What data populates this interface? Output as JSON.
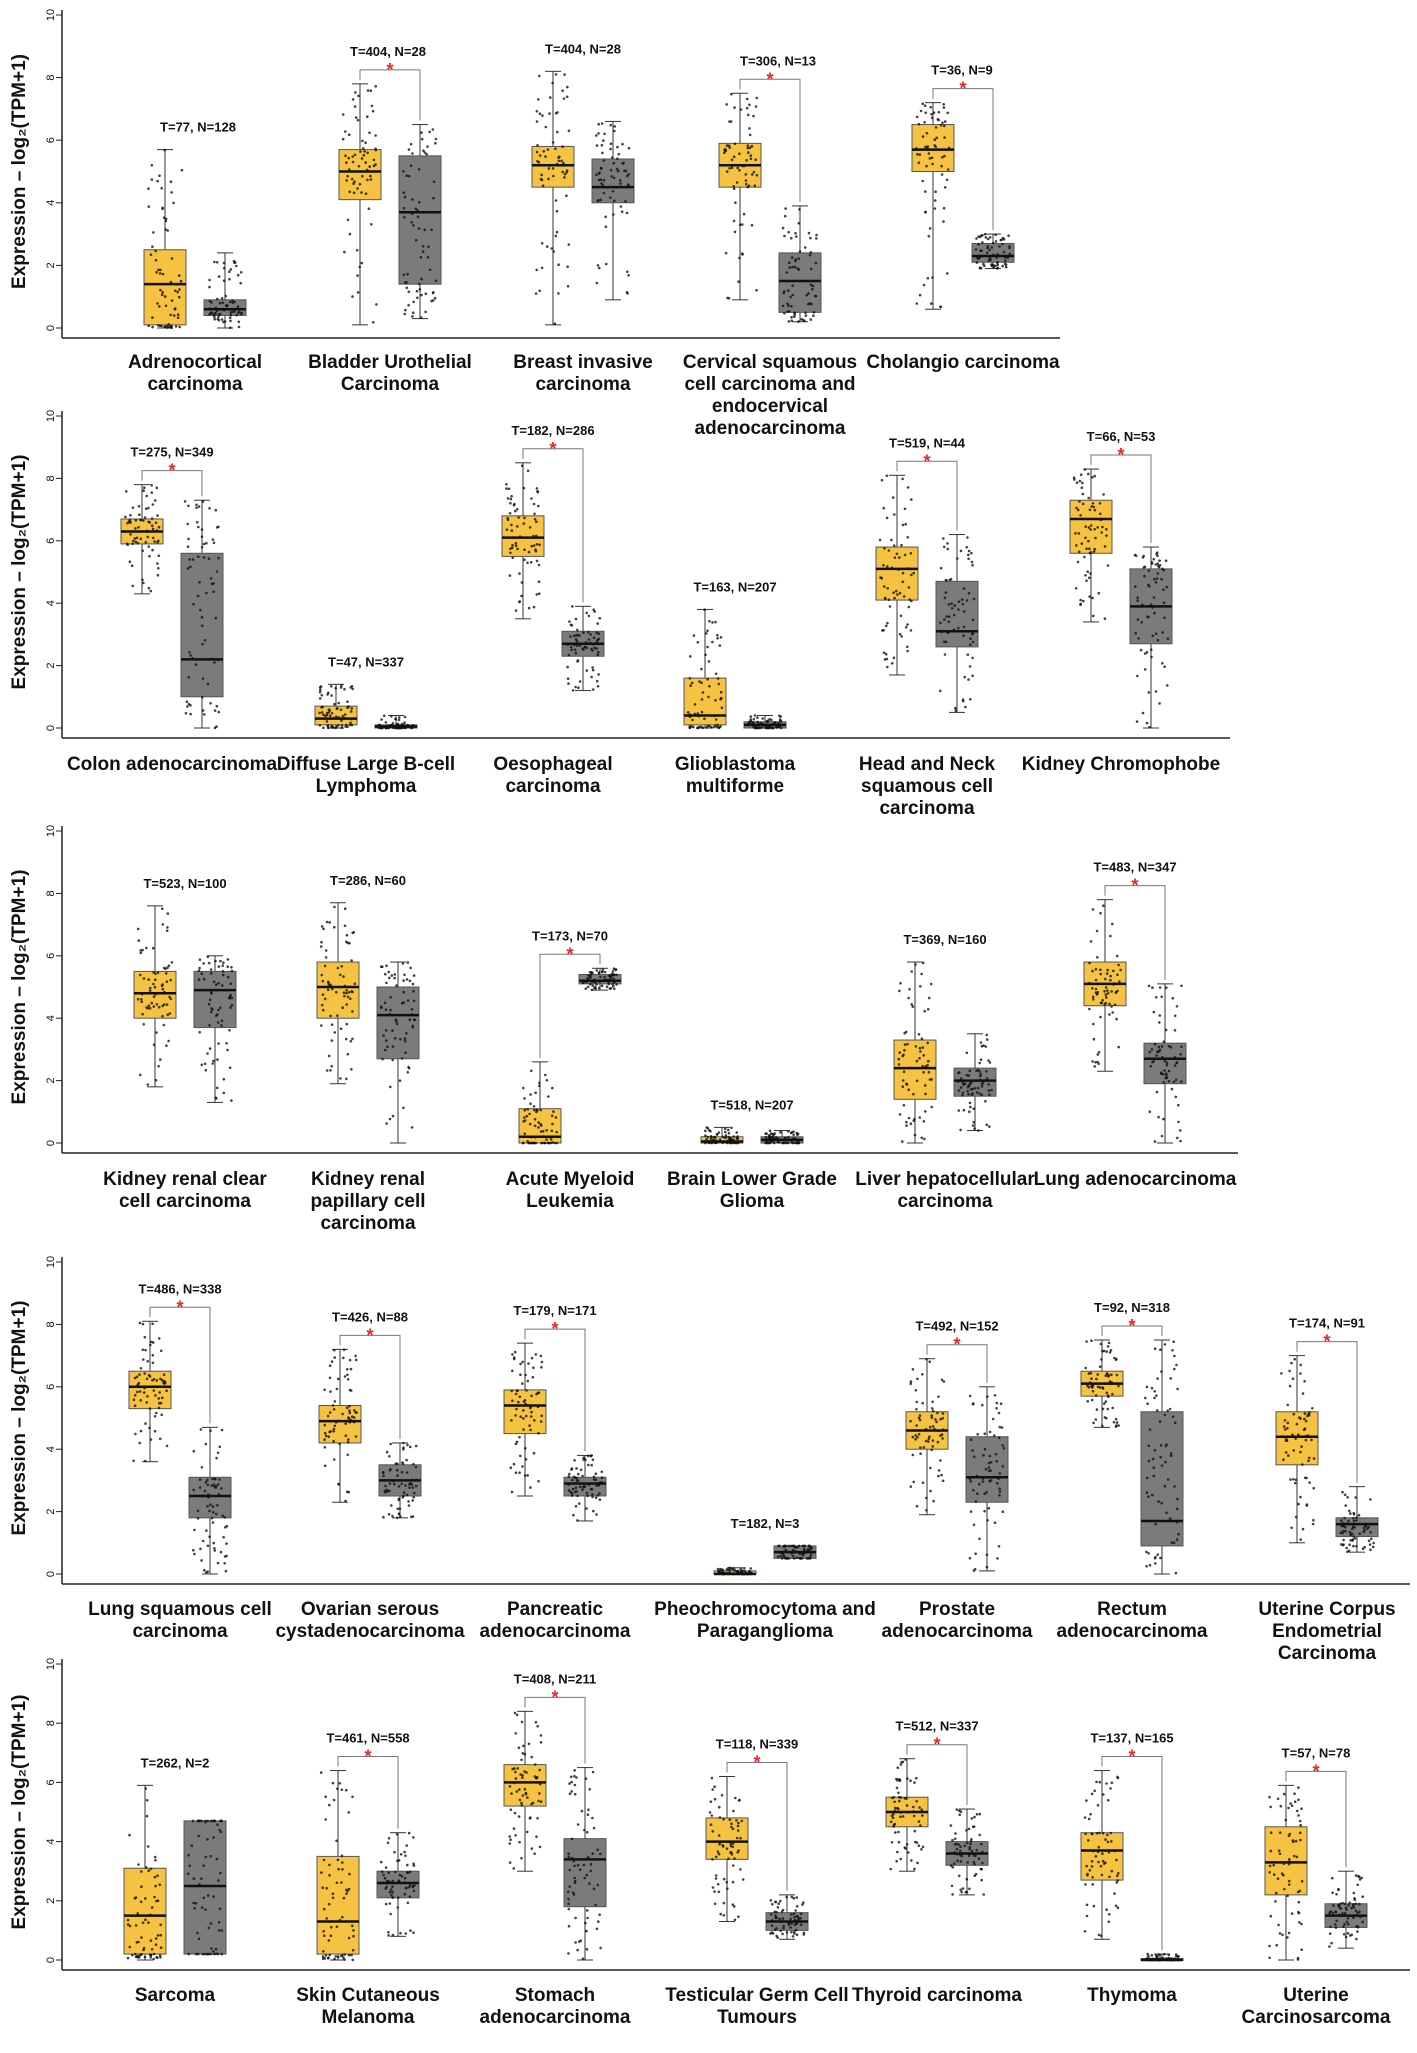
{
  "colors": {
    "tumor": "#F5C242",
    "normal": "#7B7B7B",
    "significance": "#E8262A",
    "points": "#111111"
  },
  "chart_data": [
    {
      "type": "box",
      "ylabel": "Expression – log₂(TPM+1)",
      "ylim": [
        0,
        10
      ],
      "yticks": [
        "0",
        "2",
        "4",
        "6",
        "8",
        "10"
      ],
      "groups": [
        {
          "name": "Adrenocortical carcinoma",
          "annotation": "T=77, N=128",
          "significant": false,
          "tumor": {
            "min": 0.0,
            "q1": 0.1,
            "median": 1.4,
            "q3": 2.5,
            "max": 5.7
          },
          "normal": {
            "min": 0.0,
            "q1": 0.4,
            "median": 0.6,
            "q3": 0.9,
            "max": 2.4
          }
        },
        {
          "name": "Bladder Urothelial Carcinoma",
          "annotation": "T=404, N=28",
          "significant": true,
          "tumor": {
            "min": 0.1,
            "q1": 4.1,
            "median": 5.0,
            "q3": 5.7,
            "max": 7.8
          },
          "normal": {
            "min": 0.3,
            "q1": 1.4,
            "median": 3.7,
            "q3": 5.5,
            "max": 6.5
          }
        },
        {
          "name": "Breast invasive carcinoma",
          "annotation": "T=404, N=28",
          "significant": false,
          "tumor": {
            "min": 0.1,
            "q1": 4.5,
            "median": 5.2,
            "q3": 5.8,
            "max": 8.2
          },
          "normal": {
            "min": 0.9,
            "q1": 4.0,
            "median": 4.5,
            "q3": 5.4,
            "max": 6.6
          }
        },
        {
          "name": "Cervical squamous cell carcinoma and endocervical adenocarcinoma",
          "annotation": "T=306, N=13",
          "significant": true,
          "tumor": {
            "min": 0.9,
            "q1": 4.5,
            "median": 5.2,
            "q3": 5.9,
            "max": 7.5
          },
          "normal": {
            "min": 0.2,
            "q1": 0.5,
            "median": 1.5,
            "q3": 2.4,
            "max": 3.9
          }
        },
        {
          "name": "Cholangio carcinoma",
          "annotation": "T=36, N=9",
          "significant": true,
          "tumor": {
            "min": 0.6,
            "q1": 5.0,
            "median": 5.7,
            "q3": 6.5,
            "max": 7.2
          },
          "normal": {
            "min": 1.9,
            "q1": 2.1,
            "median": 2.3,
            "q3": 2.7,
            "max": 3.0
          }
        }
      ]
    },
    {
      "type": "box",
      "ylabel": "Expression – log₂(TPM+1)",
      "ylim": [
        0,
        10
      ],
      "yticks": [
        "0",
        "2",
        "4",
        "6",
        "8",
        "10"
      ],
      "groups": [
        {
          "name": "Colon adenocarcinoma",
          "annotation": "T=275, N=349",
          "significant": true,
          "tumor": {
            "min": 4.3,
            "q1": 5.9,
            "median": 6.3,
            "q3": 6.7,
            "max": 7.8
          },
          "normal": {
            "min": 0.0,
            "q1": 1.0,
            "median": 2.2,
            "q3": 5.6,
            "max": 7.3
          }
        },
        {
          "name": "Diffuse Large B-cell Lymphoma",
          "annotation": "T=47, N=337",
          "significant": false,
          "tumor": {
            "min": 0.0,
            "q1": 0.1,
            "median": 0.3,
            "q3": 0.7,
            "max": 1.4
          },
          "normal": {
            "min": 0.0,
            "q1": 0.0,
            "median": 0.05,
            "q3": 0.1,
            "max": 0.4
          }
        },
        {
          "name": "Oesophageal carcinoma",
          "annotation": "T=182, N=286",
          "significant": true,
          "tumor": {
            "min": 3.5,
            "q1": 5.5,
            "median": 6.1,
            "q3": 6.8,
            "max": 8.5
          },
          "normal": {
            "min": 1.2,
            "q1": 2.3,
            "median": 2.7,
            "q3": 3.1,
            "max": 3.9
          }
        },
        {
          "name": "Glioblastoma multiforme",
          "annotation": "T=163, N=207",
          "significant": false,
          "tumor": {
            "min": 0.0,
            "q1": 0.1,
            "median": 0.4,
            "q3": 1.6,
            "max": 3.8
          },
          "normal": {
            "min": 0.0,
            "q1": 0.0,
            "median": 0.1,
            "q3": 0.2,
            "max": 0.4
          }
        },
        {
          "name": "Head and Neck squamous cell carcinoma",
          "annotation": "T=519, N=44",
          "significant": true,
          "tumor": {
            "min": 1.7,
            "q1": 4.1,
            "median": 5.1,
            "q3": 5.8,
            "max": 8.1
          },
          "normal": {
            "min": 0.5,
            "q1": 2.6,
            "median": 3.1,
            "q3": 4.7,
            "max": 6.2
          }
        },
        {
          "name": "Kidney Chromophobe",
          "annotation": "T=66, N=53",
          "significant": true,
          "tumor": {
            "min": 3.4,
            "q1": 5.6,
            "median": 6.7,
            "q3": 7.3,
            "max": 8.3
          },
          "normal": {
            "min": 0.0,
            "q1": 2.7,
            "median": 3.9,
            "q3": 5.1,
            "max": 5.8
          }
        }
      ]
    },
    {
      "type": "box",
      "ylabel": "Expression – log₂(TPM+1)",
      "ylim": [
        0,
        10
      ],
      "yticks": [
        "0",
        "2",
        "4",
        "6",
        "8",
        "10"
      ],
      "groups": [
        {
          "name": "Kidney renal clear cell carcinoma",
          "annotation": "T=523, N=100",
          "significant": false,
          "tumor": {
            "min": 1.8,
            "q1": 4.0,
            "median": 4.8,
            "q3": 5.5,
            "max": 7.6
          },
          "normal": {
            "min": 1.3,
            "q1": 3.7,
            "median": 4.9,
            "q3": 5.5,
            "max": 6.0
          }
        },
        {
          "name": "Kidney renal papillary cell carcinoma",
          "annotation": "T=286, N=60",
          "significant": false,
          "tumor": {
            "min": 1.9,
            "q1": 4.0,
            "median": 5.0,
            "q3": 5.8,
            "max": 7.7
          },
          "normal": {
            "min": 0.0,
            "q1": 2.7,
            "median": 4.1,
            "q3": 5.0,
            "max": 5.8
          }
        },
        {
          "name": "Acute Myeloid Leukemia",
          "annotation": "T=173, N=70",
          "significant": true,
          "tumor": {
            "min": 0.0,
            "q1": 0.0,
            "median": 0.2,
            "q3": 1.1,
            "max": 2.6
          },
          "normal": {
            "min": 4.9,
            "q1": 5.1,
            "median": 5.2,
            "q3": 5.4,
            "max": 5.6
          }
        },
        {
          "name": "Brain Lower Grade Glioma",
          "annotation": "T=518, N=207",
          "significant": false,
          "tumor": {
            "min": 0.0,
            "q1": 0.0,
            "median": 0.05,
            "q3": 0.2,
            "max": 0.5
          },
          "normal": {
            "min": 0.0,
            "q1": 0.0,
            "median": 0.1,
            "q3": 0.2,
            "max": 0.4
          }
        },
        {
          "name": "Liver hepatocellular carcinoma",
          "annotation": "T=369, N=160",
          "significant": false,
          "tumor": {
            "min": 0.0,
            "q1": 1.4,
            "median": 2.4,
            "q3": 3.3,
            "max": 5.8
          },
          "normal": {
            "min": 0.4,
            "q1": 1.5,
            "median": 2.0,
            "q3": 2.4,
            "max": 3.5
          }
        },
        {
          "name": "Lung adenocarcinoma",
          "annotation": "T=483, N=347",
          "significant": true,
          "tumor": {
            "min": 2.3,
            "q1": 4.4,
            "median": 5.1,
            "q3": 5.8,
            "max": 7.8
          },
          "normal": {
            "min": 0.0,
            "q1": 1.9,
            "median": 2.7,
            "q3": 3.2,
            "max": 5.1
          }
        }
      ]
    },
    {
      "type": "box",
      "ylabel": "Expression – log₂(TPM+1)",
      "ylim": [
        0,
        10
      ],
      "yticks": [
        "0",
        "2",
        "4",
        "6",
        "8",
        "10"
      ],
      "groups": [
        {
          "name": "Lung squamous cell carcinoma",
          "annotation": "T=486, N=338",
          "significant": true,
          "tumor": {
            "min": 3.6,
            "q1": 5.3,
            "median": 6.0,
            "q3": 6.5,
            "max": 8.1
          },
          "normal": {
            "min": 0.0,
            "q1": 1.8,
            "median": 2.5,
            "q3": 3.1,
            "max": 4.7
          }
        },
        {
          "name": "Ovarian serous cystadenocarcinoma",
          "annotation": "T=426, N=88",
          "significant": true,
          "tumor": {
            "min": 2.3,
            "q1": 4.2,
            "median": 4.9,
            "q3": 5.4,
            "max": 7.2
          },
          "normal": {
            "min": 1.8,
            "q1": 2.5,
            "median": 3.0,
            "q3": 3.5,
            "max": 4.2
          }
        },
        {
          "name": "Pancreatic adenocarcinoma",
          "annotation": "T=179, N=171",
          "significant": true,
          "tumor": {
            "min": 2.5,
            "q1": 4.5,
            "median": 5.4,
            "q3": 5.9,
            "max": 7.4
          },
          "normal": {
            "min": 1.7,
            "q1": 2.5,
            "median": 2.9,
            "q3": 3.1,
            "max": 3.8
          }
        },
        {
          "name": "Pheochromocytoma and Paraganglioma",
          "annotation": "T=182, N=3",
          "significant": false,
          "tumor": {
            "min": 0.0,
            "q1": 0.0,
            "median": 0.0,
            "q3": 0.1,
            "max": 0.2
          },
          "normal": {
            "min": 0.5,
            "q1": 0.5,
            "median": 0.7,
            "q3": 0.9,
            "max": 0.9
          }
        },
        {
          "name": "Prostate adenocarcinoma",
          "annotation": "T=492, N=152",
          "significant": true,
          "tumor": {
            "min": 1.9,
            "q1": 4.0,
            "median": 4.6,
            "q3": 5.2,
            "max": 6.9
          },
          "normal": {
            "min": 0.1,
            "q1": 2.3,
            "median": 3.1,
            "q3": 4.4,
            "max": 6.0
          }
        },
        {
          "name": "Rectum adenocarcinoma",
          "annotation": "T=92, N=318",
          "significant": true,
          "tumor": {
            "min": 4.7,
            "q1": 5.7,
            "median": 6.1,
            "q3": 6.5,
            "max": 7.5
          },
          "normal": {
            "min": 0.0,
            "q1": 0.9,
            "median": 1.7,
            "q3": 5.2,
            "max": 7.5
          }
        },
        {
          "name": "Uterine Corpus Endometrial Carcinoma",
          "annotation": "T=174, N=91",
          "significant": true,
          "tumor": {
            "min": 1.0,
            "q1": 3.5,
            "median": 4.4,
            "q3": 5.2,
            "max": 7.0
          },
          "normal": {
            "min": 0.7,
            "q1": 1.2,
            "median": 1.6,
            "q3": 1.8,
            "max": 2.8
          }
        }
      ]
    },
    {
      "type": "box",
      "ylabel": "Expression – log₂(TPM+1)",
      "ylim": [
        0,
        10
      ],
      "yticks": [
        "0",
        "2",
        "4",
        "6",
        "8",
        "10"
      ],
      "groups": [
        {
          "name": "Sarcoma",
          "annotation": "T=262, N=2",
          "significant": false,
          "tumor": {
            "min": 0.0,
            "q1": 0.2,
            "median": 1.5,
            "q3": 3.1,
            "max": 5.9
          },
          "normal": {
            "min": 0.2,
            "q1": 0.2,
            "median": 2.5,
            "q3": 4.7,
            "max": 4.7
          }
        },
        {
          "name": "Skin Cutaneous Melanoma",
          "annotation": "T=461, N=558",
          "significant": true,
          "tumor": {
            "min": 0.0,
            "q1": 0.2,
            "median": 1.3,
            "q3": 3.5,
            "max": 6.4
          },
          "normal": {
            "min": 0.8,
            "q1": 2.1,
            "median": 2.6,
            "q3": 3.0,
            "max": 4.3
          }
        },
        {
          "name": "Stomach adenocarcinoma",
          "annotation": "T=408, N=211",
          "significant": true,
          "tumor": {
            "min": 3.0,
            "q1": 5.2,
            "median": 6.0,
            "q3": 6.6,
            "max": 8.4
          },
          "normal": {
            "min": 0.0,
            "q1": 1.8,
            "median": 3.4,
            "q3": 4.1,
            "max": 6.5
          }
        },
        {
          "name": "Testicular Germ Cell Tumours",
          "annotation": "T=118, N=339",
          "significant": true,
          "tumor": {
            "min": 1.3,
            "q1": 3.4,
            "median": 4.0,
            "q3": 4.8,
            "max": 6.2
          },
          "normal": {
            "min": 0.7,
            "q1": 1.0,
            "median": 1.3,
            "q3": 1.6,
            "max": 2.2
          }
        },
        {
          "name": "Thyroid carcinoma",
          "annotation": "T=512, N=337",
          "significant": true,
          "tumor": {
            "min": 3.0,
            "q1": 4.5,
            "median": 5.0,
            "q3": 5.5,
            "max": 6.8
          },
          "normal": {
            "min": 2.2,
            "q1": 3.2,
            "median": 3.6,
            "q3": 4.0,
            "max": 5.1
          }
        },
        {
          "name": "Thymoma",
          "annotation": "T=137, N=165",
          "significant": true,
          "tumor": {
            "min": 0.7,
            "q1": 2.7,
            "median": 3.7,
            "q3": 4.3,
            "max": 6.4
          },
          "normal": {
            "min": 0.0,
            "q1": 0.0,
            "median": 0.0,
            "q3": 0.05,
            "max": 0.2
          }
        },
        {
          "name": "Uterine Carcinosarcoma",
          "annotation": "T=57, N=78",
          "significant": true,
          "tumor": {
            "min": 0.0,
            "q1": 2.2,
            "median": 3.3,
            "q3": 4.5,
            "max": 5.9
          },
          "normal": {
            "min": 0.4,
            "q1": 1.1,
            "median": 1.5,
            "q3": 1.9,
            "max": 3.0
          }
        }
      ]
    }
  ]
}
